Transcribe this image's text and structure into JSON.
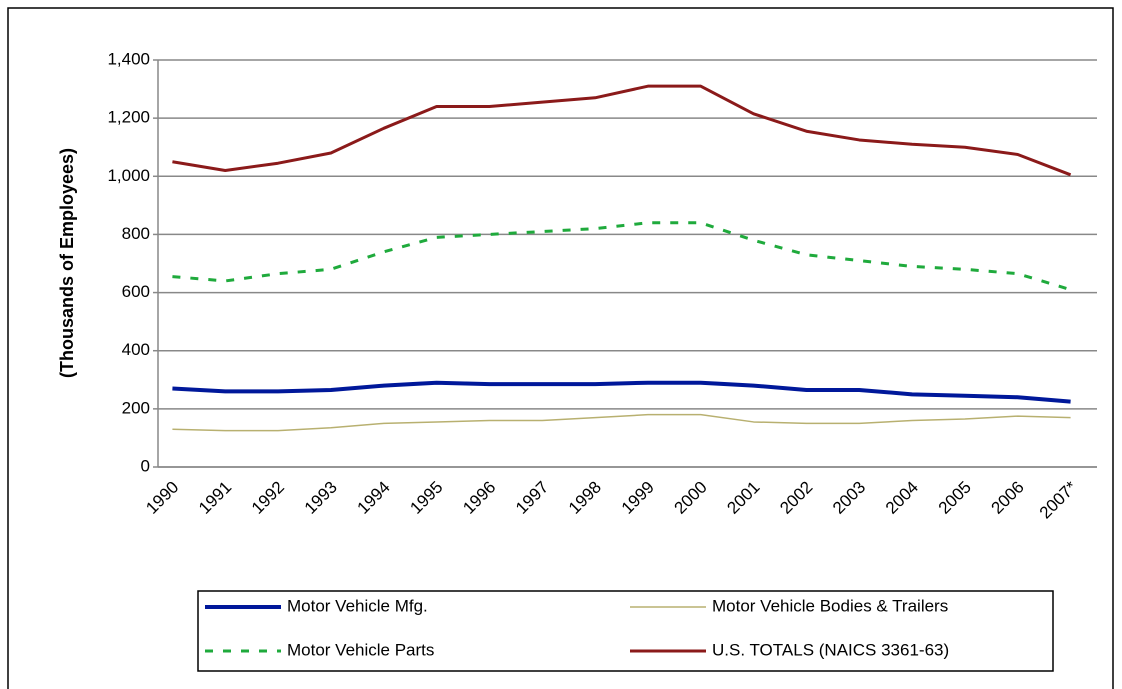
{
  "chart_data": {
    "type": "line",
    "y_label": "(Thousands of Employees)",
    "categories": [
      "1990",
      "1991",
      "1992",
      "1993",
      "1994",
      "1995",
      "1996",
      "1997",
      "1998",
      "1999",
      "2000",
      "2001",
      "2002",
      "2003",
      "2004",
      "2005",
      "2006",
      "2007*"
    ],
    "series": [
      {
        "name": "Motor Vehicle Mfg.",
        "color": "#00189a",
        "linewidth": 4,
        "line_style": "solid",
        "values": [
          270,
          260,
          260,
          265,
          280,
          290,
          285,
          285,
          285,
          290,
          290,
          280,
          265,
          265,
          250,
          245,
          240,
          225
        ]
      },
      {
        "name": "Motor Vehicle Bodies & Trailers",
        "color": "#b8b070",
        "linewidth": 1.5,
        "line_style": "solid",
        "values": [
          130,
          125,
          125,
          135,
          150,
          155,
          160,
          160,
          170,
          180,
          180,
          155,
          150,
          150,
          160,
          165,
          175,
          170
        ]
      },
      {
        "name": "Motor Vehicle Parts",
        "color": "#1faa3c",
        "linewidth": 3,
        "line_style": "dashed",
        "values": [
          655,
          640,
          665,
          680,
          740,
          790,
          800,
          810,
          820,
          840,
          840,
          780,
          730,
          710,
          690,
          680,
          665,
          610
        ]
      },
      {
        "name": "U.S. TOTALS (NAICS 3361-63)",
        "color": "#8b1a1a",
        "linewidth": 3,
        "line_style": "solid",
        "values": [
          1050,
          1020,
          1045,
          1080,
          1165,
          1240,
          1240,
          1255,
          1270,
          1310,
          1310,
          1215,
          1155,
          1125,
          1110,
          1100,
          1075,
          1005
        ]
      }
    ],
    "ylim": [
      0,
      1400
    ],
    "yticks": [
      0,
      200,
      400,
      600,
      800,
      {
        "value": 1000,
        "label": "1,000"
      },
      {
        "value": 1200,
        "label": "1,200"
      },
      {
        "value": 1400,
        "label": "1,400"
      }
    ],
    "grid": true,
    "legend": "bottom"
  }
}
